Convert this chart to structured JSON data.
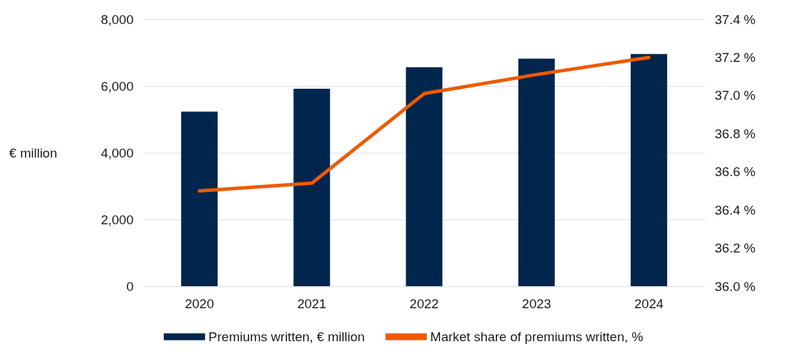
{
  "chart_data": {
    "type": "bar",
    "ylabel": "€ million",
    "categories": [
      "2020",
      "2021",
      "2022",
      "2023",
      "2024"
    ],
    "series": [
      {
        "name": "Premiums written, € million",
        "color": "#00264d",
        "values": [
          5230,
          5920,
          6560,
          6820,
          6960
        ]
      },
      {
        "name": "Market share of premiums written, %",
        "type": "line",
        "axis": "y2",
        "color": "#ee5a00",
        "values": [
          36.5,
          36.54,
          37.01,
          37.11,
          37.2
        ]
      }
    ],
    "ylim": [
      0,
      8000
    ],
    "yticks": [
      {
        "value": 0,
        "label": "0"
      },
      {
        "value": 2000,
        "label": "2,000"
      },
      {
        "value": 4000,
        "label": "4,000"
      },
      {
        "value": 6000,
        "label": "6,000"
      },
      {
        "value": 8000,
        "label": "8,000"
      }
    ],
    "y2lim": [
      36.0,
      37.4
    ],
    "y2ticks": [
      {
        "value": 36.0,
        "label": "36.0 %"
      },
      {
        "value": 36.2,
        "label": "36.2 %"
      },
      {
        "value": 36.4,
        "label": "36.4 %"
      },
      {
        "value": 36.6,
        "label": "36.6 %"
      },
      {
        "value": 36.8,
        "label": "36.8 %"
      },
      {
        "value": 37.0,
        "label": "37.0 %"
      },
      {
        "value": 37.2,
        "label": "37.2 %"
      },
      {
        "value": 37.4,
        "label": "37.4 %"
      }
    ],
    "grid": "y",
    "legend": "bottom",
    "marker": "none"
  }
}
